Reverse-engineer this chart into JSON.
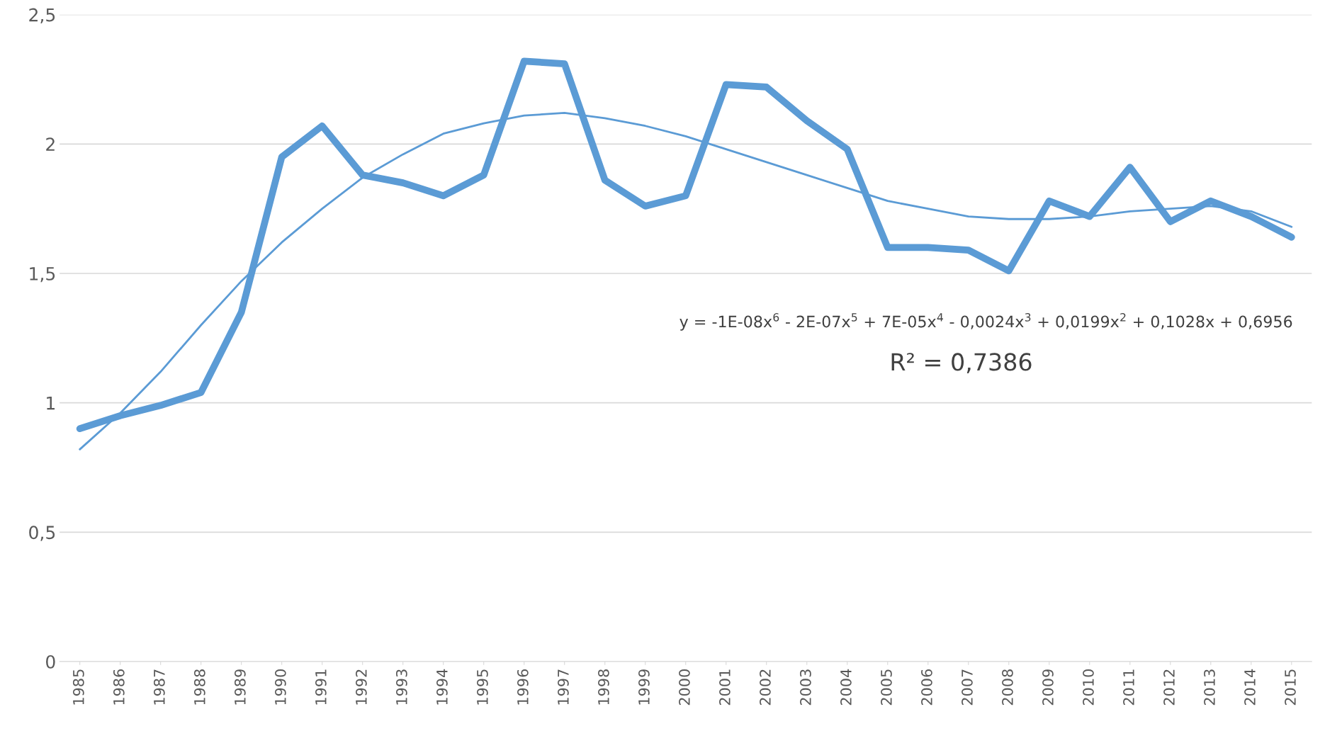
{
  "chart_data": {
    "type": "line",
    "categories": [
      "1985",
      "1986",
      "1987",
      "1988",
      "1989",
      "1990",
      "1991",
      "1992",
      "1993",
      "1994",
      "1995",
      "1996",
      "1997",
      "1998",
      "1999",
      "2000",
      "2001",
      "2002",
      "2003",
      "2004",
      "2005",
      "2006",
      "2007",
      "2008",
      "2009",
      "2010",
      "2011",
      "2012",
      "2013",
      "2014",
      "2015"
    ],
    "series": [
      {
        "color": "#5b9bd5",
        "values": [
          0.9,
          0.95,
          0.99,
          1.04,
          1.35,
          1.95,
          2.07,
          1.88,
          1.85,
          1.8,
          1.88,
          2.32,
          2.31,
          1.86,
          1.76,
          1.8,
          2.23,
          2.22,
          2.09,
          1.98,
          1.6,
          1.6,
          1.59,
          1.51,
          1.78,
          1.72,
          1.91,
          1.7,
          1.78,
          1.72,
          1.64
        ]
      },
      {
        "color": "#5b9bd5",
        "values": [
          0.82,
          0.96,
          1.12,
          1.3,
          1.47,
          1.62,
          1.75,
          1.87,
          1.96,
          2.04,
          2.08,
          2.11,
          2.12,
          2.1,
          2.07,
          2.03,
          1.98,
          1.93,
          1.88,
          1.83,
          1.78,
          1.75,
          1.72,
          1.71,
          1.71,
          1.72,
          1.74,
          1.75,
          1.76,
          1.74,
          1.68
        ]
      }
    ],
    "ylim": [
      0,
      2.5
    ],
    "yticks": [
      {
        "value": 0,
        "label": "0"
      },
      {
        "value": 0.5,
        "label": "0,5"
      },
      {
        "value": 1,
        "label": "1"
      },
      {
        "value": 1.5,
        "label": "1,5"
      },
      {
        "value": 2,
        "label": "2"
      },
      {
        "value": 2.5,
        "label": "2,5"
      }
    ],
    "grid": "y",
    "legend": false,
    "marker": "none",
    "line_style": "solid",
    "annotations": [
      "y = -1E-08x$^{6}$ - 2E-07x$^{5}$ + 7E-05x$^{4}$ - 0,0024x$^{3}$ + 0,0199x$^{2}$ + 0,1028x + 0,6956",
      "R² = 0,7386"
    ]
  }
}
